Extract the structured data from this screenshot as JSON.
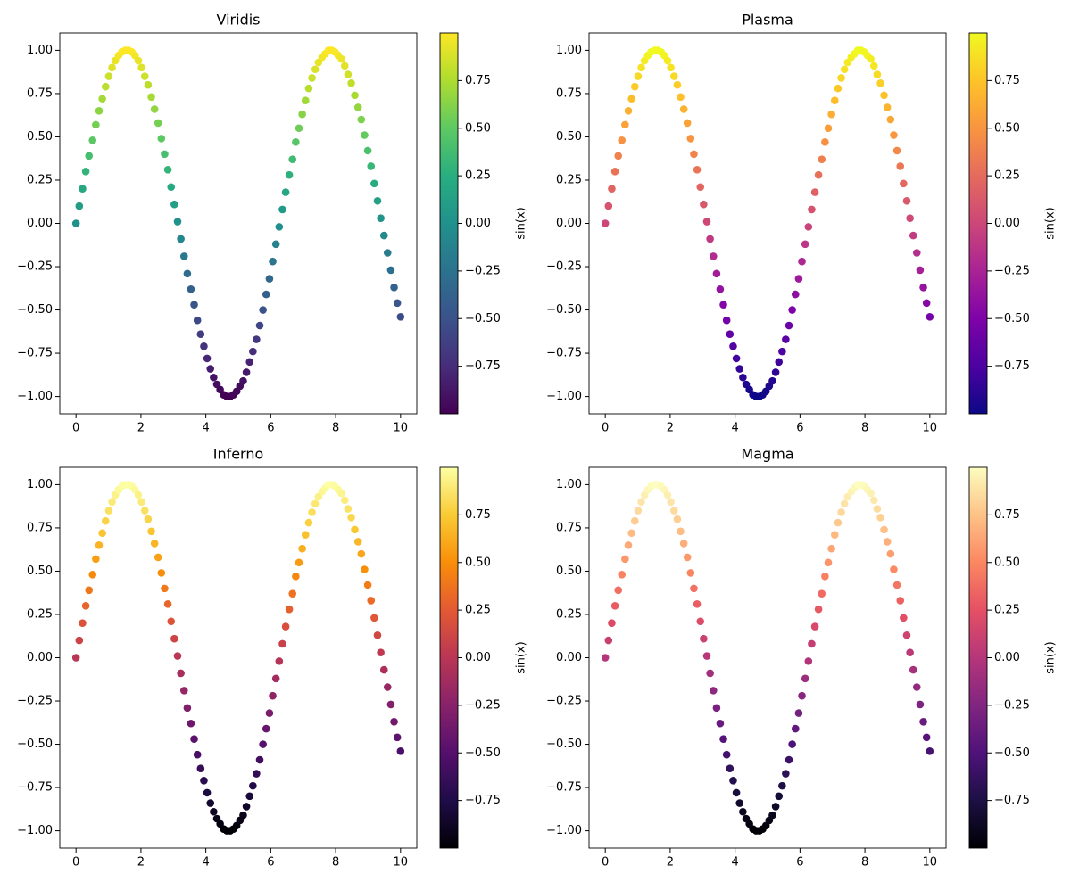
{
  "chart_data": [
    {
      "type": "scatter",
      "title": "Viridis",
      "colorbar_label": "sin(x)",
      "colors": [
        "#440154",
        "#472d7b",
        "#3b528b",
        "#2c728e",
        "#21918c",
        "#28ae80",
        "#5ec962",
        "#addc30",
        "#fde725"
      ],
      "clim": [
        -1,
        1
      ],
      "cticks": [
        {
          "value": -0.75,
          "label": "−0.75"
        },
        {
          "value": -0.5,
          "label": "−0.50"
        },
        {
          "value": -0.25,
          "label": "−0.25"
        },
        {
          "value": 0,
          "label": "0.00"
        },
        {
          "value": 0.25,
          "label": "0.25"
        },
        {
          "value": 0.5,
          "label": "0.50"
        },
        {
          "value": 0.75,
          "label": "0.75"
        }
      ],
      "xlim": [
        -0.5,
        10.5
      ],
      "xticks": [
        0,
        2,
        4,
        6,
        8,
        10
      ],
      "ylim": [
        -1.1,
        1.1
      ],
      "yticks": [
        {
          "value": -1,
          "label": "−1.00"
        },
        {
          "value": -0.75,
          "label": "−0.75"
        },
        {
          "value": -0.5,
          "label": "−0.50"
        },
        {
          "value": -0.25,
          "label": "−0.25"
        },
        {
          "value": 0,
          "label": "0.00"
        },
        {
          "value": 0.25,
          "label": "0.25"
        },
        {
          "value": 0.5,
          "label": "0.50"
        },
        {
          "value": 0.75,
          "label": "0.75"
        },
        {
          "value": 1,
          "label": "1.00"
        }
      ],
      "x": [
        0,
        0.1,
        0.2,
        0.3,
        0.4,
        0.51,
        0.61,
        0.71,
        0.81,
        0.91,
        1.01,
        1.11,
        1.21,
        1.31,
        1.41,
        1.52,
        1.62,
        1.72,
        1.82,
        1.92,
        2.02,
        2.12,
        2.22,
        2.32,
        2.42,
        2.53,
        2.63,
        2.73,
        2.83,
        2.93,
        3.03,
        3.13,
        3.23,
        3.33,
        3.43,
        3.54,
        3.64,
        3.74,
        3.84,
        3.94,
        4.04,
        4.14,
        4.24,
        4.34,
        4.44,
        4.55,
        4.65,
        4.75,
        4.85,
        4.95,
        5.05,
        5.15,
        5.25,
        5.35,
        5.45,
        5.56,
        5.66,
        5.76,
        5.86,
        5.96,
        6.06,
        6.16,
        6.26,
        6.36,
        6.46,
        6.57,
        6.67,
        6.77,
        6.87,
        6.97,
        7.07,
        7.17,
        7.27,
        7.37,
        7.47,
        7.58,
        7.68,
        7.78,
        7.88,
        7.98,
        8.08,
        8.18,
        8.28,
        8.38,
        8.48,
        8.59,
        8.69,
        8.79,
        8.89,
        8.99,
        9.09,
        9.19,
        9.29,
        9.39,
        9.49,
        9.6,
        9.7,
        9.8,
        9.9,
        10
      ],
      "values": [
        0,
        0.1,
        0.2,
        0.3,
        0.39,
        0.48,
        0.57,
        0.65,
        0.72,
        0.79,
        0.85,
        0.9,
        0.94,
        0.97,
        0.99,
        1.0,
        1.0,
        0.99,
        0.97,
        0.94,
        0.9,
        0.85,
        0.8,
        0.73,
        0.66,
        0.58,
        0.49,
        0.4,
        0.31,
        0.21,
        0.11,
        0.01,
        -0.09,
        -0.19,
        -0.29,
        -0.38,
        -0.47,
        -0.56,
        -0.64,
        -0.71,
        -0.78,
        -0.84,
        -0.89,
        -0.93,
        -0.96,
        -0.99,
        -1.0,
        -1.0,
        -0.99,
        -0.97,
        -0.94,
        -0.91,
        -0.86,
        -0.8,
        -0.74,
        -0.67,
        -0.59,
        -0.5,
        -0.41,
        -0.32,
        -0.22,
        -0.12,
        -0.02,
        0.08,
        0.18,
        0.28,
        0.37,
        0.47,
        0.55,
        0.63,
        0.71,
        0.78,
        0.84,
        0.89,
        0.93,
        0.96,
        0.98,
        1.0,
        1.0,
        0.99,
        0.97,
        0.95,
        0.91,
        0.86,
        0.81,
        0.74,
        0.67,
        0.6,
        0.51,
        0.42,
        0.33,
        0.23,
        0.13,
        0.03,
        -0.07,
        -0.17,
        -0.27,
        -0.37,
        -0.46,
        -0.54
      ]
    },
    {
      "type": "scatter",
      "title": "Plasma",
      "colorbar_label": "sin(x)",
      "colors": [
        "#0d0887",
        "#4c02a1",
        "#7e03a8",
        "#a92395",
        "#cc4778",
        "#e56b5d",
        "#f89540",
        "#fdc328",
        "#f0f921"
      ],
      "clim": [
        -1,
        1
      ],
      "cticks": [
        {
          "value": -0.75,
          "label": "−0.75"
        },
        {
          "value": -0.5,
          "label": "−0.50"
        },
        {
          "value": -0.25,
          "label": "−0.25"
        },
        {
          "value": 0,
          "label": "0.00"
        },
        {
          "value": 0.25,
          "label": "0.25"
        },
        {
          "value": 0.5,
          "label": "0.50"
        },
        {
          "value": 0.75,
          "label": "0.75"
        }
      ],
      "xlim": [
        -0.5,
        10.5
      ],
      "xticks": [
        0,
        2,
        4,
        6,
        8,
        10
      ],
      "ylim": [
        -1.1,
        1.1
      ],
      "yticks": [
        {
          "value": -1,
          "label": "−1.00"
        },
        {
          "value": -0.75,
          "label": "−0.75"
        },
        {
          "value": -0.5,
          "label": "−0.50"
        },
        {
          "value": -0.25,
          "label": "−0.25"
        },
        {
          "value": 0,
          "label": "0.00"
        },
        {
          "value": 0.25,
          "label": "0.25"
        },
        {
          "value": 0.5,
          "label": "0.50"
        },
        {
          "value": 0.75,
          "label": "0.75"
        },
        {
          "value": 1,
          "label": "1.00"
        }
      ],
      "x": [
        0,
        0.1,
        0.2,
        0.3,
        0.4,
        0.51,
        0.61,
        0.71,
        0.81,
        0.91,
        1.01,
        1.11,
        1.21,
        1.31,
        1.41,
        1.52,
        1.62,
        1.72,
        1.82,
        1.92,
        2.02,
        2.12,
        2.22,
        2.32,
        2.42,
        2.53,
        2.63,
        2.73,
        2.83,
        2.93,
        3.03,
        3.13,
        3.23,
        3.33,
        3.43,
        3.54,
        3.64,
        3.74,
        3.84,
        3.94,
        4.04,
        4.14,
        4.24,
        4.34,
        4.44,
        4.55,
        4.65,
        4.75,
        4.85,
        4.95,
        5.05,
        5.15,
        5.25,
        5.35,
        5.45,
        5.56,
        5.66,
        5.76,
        5.86,
        5.96,
        6.06,
        6.16,
        6.26,
        6.36,
        6.46,
        6.57,
        6.67,
        6.77,
        6.87,
        6.97,
        7.07,
        7.17,
        7.27,
        7.37,
        7.47,
        7.58,
        7.68,
        7.78,
        7.88,
        7.98,
        8.08,
        8.18,
        8.28,
        8.38,
        8.48,
        8.59,
        8.69,
        8.79,
        8.89,
        8.99,
        9.09,
        9.19,
        9.29,
        9.39,
        9.49,
        9.6,
        9.7,
        9.8,
        9.9,
        10
      ],
      "values": [
        0,
        0.1,
        0.2,
        0.3,
        0.39,
        0.48,
        0.57,
        0.65,
        0.72,
        0.79,
        0.85,
        0.9,
        0.94,
        0.97,
        0.99,
        1.0,
        1.0,
        0.99,
        0.97,
        0.94,
        0.9,
        0.85,
        0.8,
        0.73,
        0.66,
        0.58,
        0.49,
        0.4,
        0.31,
        0.21,
        0.11,
        0.01,
        -0.09,
        -0.19,
        -0.29,
        -0.38,
        -0.47,
        -0.56,
        -0.64,
        -0.71,
        -0.78,
        -0.84,
        -0.89,
        -0.93,
        -0.96,
        -0.99,
        -1.0,
        -1.0,
        -0.99,
        -0.97,
        -0.94,
        -0.91,
        -0.86,
        -0.8,
        -0.74,
        -0.67,
        -0.59,
        -0.5,
        -0.41,
        -0.32,
        -0.22,
        -0.12,
        -0.02,
        0.08,
        0.18,
        0.28,
        0.37,
        0.47,
        0.55,
        0.63,
        0.71,
        0.78,
        0.84,
        0.89,
        0.93,
        0.96,
        0.98,
        1.0,
        1.0,
        0.99,
        0.97,
        0.95,
        0.91,
        0.86,
        0.81,
        0.74,
        0.67,
        0.6,
        0.51,
        0.42,
        0.33,
        0.23,
        0.13,
        0.03,
        -0.07,
        -0.17,
        -0.27,
        -0.37,
        -0.46,
        -0.54
      ]
    },
    {
      "type": "scatter",
      "title": "Inferno",
      "colorbar_label": "sin(x)",
      "colors": [
        "#000004",
        "#1f0c48",
        "#550f6d",
        "#88226a",
        "#ba3655",
        "#e35933",
        "#f98e09",
        "#f9cb35",
        "#fcffa4"
      ],
      "clim": [
        -1,
        1
      ],
      "cticks": [
        {
          "value": -0.75,
          "label": "−0.75"
        },
        {
          "value": -0.5,
          "label": "−0.50"
        },
        {
          "value": -0.25,
          "label": "−0.25"
        },
        {
          "value": 0,
          "label": "0.00"
        },
        {
          "value": 0.25,
          "label": "0.25"
        },
        {
          "value": 0.5,
          "label": "0.50"
        },
        {
          "value": 0.75,
          "label": "0.75"
        }
      ],
      "xlim": [
        -0.5,
        10.5
      ],
      "xticks": [
        0,
        2,
        4,
        6,
        8,
        10
      ],
      "ylim": [
        -1.1,
        1.1
      ],
      "yticks": [
        {
          "value": -1,
          "label": "−1.00"
        },
        {
          "value": -0.75,
          "label": "−0.75"
        },
        {
          "value": -0.5,
          "label": "−0.50"
        },
        {
          "value": -0.25,
          "label": "−0.25"
        },
        {
          "value": 0,
          "label": "0.00"
        },
        {
          "value": 0.25,
          "label": "0.25"
        },
        {
          "value": 0.5,
          "label": "0.50"
        },
        {
          "value": 0.75,
          "label": "0.75"
        },
        {
          "value": 1,
          "label": "1.00"
        }
      ],
      "x": [
        0,
        0.1,
        0.2,
        0.3,
        0.4,
        0.51,
        0.61,
        0.71,
        0.81,
        0.91,
        1.01,
        1.11,
        1.21,
        1.31,
        1.41,
        1.52,
        1.62,
        1.72,
        1.82,
        1.92,
        2.02,
        2.12,
        2.22,
        2.32,
        2.42,
        2.53,
        2.63,
        2.73,
        2.83,
        2.93,
        3.03,
        3.13,
        3.23,
        3.33,
        3.43,
        3.54,
        3.64,
        3.74,
        3.84,
        3.94,
        4.04,
        4.14,
        4.24,
        4.34,
        4.44,
        4.55,
        4.65,
        4.75,
        4.85,
        4.95,
        5.05,
        5.15,
        5.25,
        5.35,
        5.45,
        5.56,
        5.66,
        5.76,
        5.86,
        5.96,
        6.06,
        6.16,
        6.26,
        6.36,
        6.46,
        6.57,
        6.67,
        6.77,
        6.87,
        6.97,
        7.07,
        7.17,
        7.27,
        7.37,
        7.47,
        7.58,
        7.68,
        7.78,
        7.88,
        7.98,
        8.08,
        8.18,
        8.28,
        8.38,
        8.48,
        8.59,
        8.69,
        8.79,
        8.89,
        8.99,
        9.09,
        9.19,
        9.29,
        9.39,
        9.49,
        9.6,
        9.7,
        9.8,
        9.9,
        10
      ],
      "values": [
        0,
        0.1,
        0.2,
        0.3,
        0.39,
        0.48,
        0.57,
        0.65,
        0.72,
        0.79,
        0.85,
        0.9,
        0.94,
        0.97,
        0.99,
        1.0,
        1.0,
        0.99,
        0.97,
        0.94,
        0.9,
        0.85,
        0.8,
        0.73,
        0.66,
        0.58,
        0.49,
        0.4,
        0.31,
        0.21,
        0.11,
        0.01,
        -0.09,
        -0.19,
        -0.29,
        -0.38,
        -0.47,
        -0.56,
        -0.64,
        -0.71,
        -0.78,
        -0.84,
        -0.89,
        -0.93,
        -0.96,
        -0.99,
        -1.0,
        -1.0,
        -0.99,
        -0.97,
        -0.94,
        -0.91,
        -0.86,
        -0.8,
        -0.74,
        -0.67,
        -0.59,
        -0.5,
        -0.41,
        -0.32,
        -0.22,
        -0.12,
        -0.02,
        0.08,
        0.18,
        0.28,
        0.37,
        0.47,
        0.55,
        0.63,
        0.71,
        0.78,
        0.84,
        0.89,
        0.93,
        0.96,
        0.98,
        1.0,
        1.0,
        0.99,
        0.97,
        0.95,
        0.91,
        0.86,
        0.81,
        0.74,
        0.67,
        0.6,
        0.51,
        0.42,
        0.33,
        0.23,
        0.13,
        0.03,
        -0.07,
        -0.17,
        -0.27,
        -0.37,
        -0.46,
        -0.54
      ]
    },
    {
      "type": "scatter",
      "title": "Magma",
      "colorbar_label": "sin(x)",
      "colors": [
        "#000004",
        "#1c1044",
        "#4f127b",
        "#812581",
        "#b5367a",
        "#e55064",
        "#fb8761",
        "#fec287",
        "#fcfdbf"
      ],
      "clim": [
        -1,
        1
      ],
      "cticks": [
        {
          "value": -0.75,
          "label": "−0.75"
        },
        {
          "value": -0.5,
          "label": "−0.50"
        },
        {
          "value": -0.25,
          "label": "−0.25"
        },
        {
          "value": 0,
          "label": "0.00"
        },
        {
          "value": 0.25,
          "label": "0.25"
        },
        {
          "value": 0.5,
          "label": "0.50"
        },
        {
          "value": 0.75,
          "label": "0.75"
        }
      ],
      "xlim": [
        -0.5,
        10.5
      ],
      "xticks": [
        0,
        2,
        4,
        6,
        8,
        10
      ],
      "ylim": [
        -1.1,
        1.1
      ],
      "yticks": [
        {
          "value": -1,
          "label": "−1.00"
        },
        {
          "value": -0.75,
          "label": "−0.75"
        },
        {
          "value": -0.5,
          "label": "−0.50"
        },
        {
          "value": -0.25,
          "label": "−0.25"
        },
        {
          "value": 0,
          "label": "0.00"
        },
        {
          "value": 0.25,
          "label": "0.25"
        },
        {
          "value": 0.5,
          "label": "0.50"
        },
        {
          "value": 0.75,
          "label": "0.75"
        },
        {
          "value": 1,
          "label": "1.00"
        }
      ],
      "x": [
        0,
        0.1,
        0.2,
        0.3,
        0.4,
        0.51,
        0.61,
        0.71,
        0.81,
        0.91,
        1.01,
        1.11,
        1.21,
        1.31,
        1.41,
        1.52,
        1.62,
        1.72,
        1.82,
        1.92,
        2.02,
        2.12,
        2.22,
        2.32,
        2.42,
        2.53,
        2.63,
        2.73,
        2.83,
        2.93,
        3.03,
        3.13,
        3.23,
        3.33,
        3.43,
        3.54,
        3.64,
        3.74,
        3.84,
        3.94,
        4.04,
        4.14,
        4.24,
        4.34,
        4.44,
        4.55,
        4.65,
        4.75,
        4.85,
        4.95,
        5.05,
        5.15,
        5.25,
        5.35,
        5.45,
        5.56,
        5.66,
        5.76,
        5.86,
        5.96,
        6.06,
        6.16,
        6.26,
        6.36,
        6.46,
        6.57,
        6.67,
        6.77,
        6.87,
        6.97,
        7.07,
        7.17,
        7.27,
        7.37,
        7.47,
        7.58,
        7.68,
        7.78,
        7.88,
        7.98,
        8.08,
        8.18,
        8.28,
        8.38,
        8.48,
        8.59,
        8.69,
        8.79,
        8.89,
        8.99,
        9.09,
        9.19,
        9.29,
        9.39,
        9.49,
        9.6,
        9.7,
        9.8,
        9.9,
        10
      ],
      "values": [
        0,
        0.1,
        0.2,
        0.3,
        0.39,
        0.48,
        0.57,
        0.65,
        0.72,
        0.79,
        0.85,
        0.9,
        0.94,
        0.97,
        0.99,
        1.0,
        1.0,
        0.99,
        0.97,
        0.94,
        0.9,
        0.85,
        0.8,
        0.73,
        0.66,
        0.58,
        0.49,
        0.4,
        0.31,
        0.21,
        0.11,
        0.01,
        -0.09,
        -0.19,
        -0.29,
        -0.38,
        -0.47,
        -0.56,
        -0.64,
        -0.71,
        -0.78,
        -0.84,
        -0.89,
        -0.93,
        -0.96,
        -0.99,
        -1.0,
        -1.0,
        -0.99,
        -0.97,
        -0.94,
        -0.91,
        -0.86,
        -0.8,
        -0.74,
        -0.67,
        -0.59,
        -0.5,
        -0.41,
        -0.32,
        -0.22,
        -0.12,
        -0.02,
        0.08,
        0.18,
        0.28,
        0.37,
        0.47,
        0.55,
        0.63,
        0.71,
        0.78,
        0.84,
        0.89,
        0.93,
        0.96,
        0.98,
        1.0,
        1.0,
        0.99,
        0.97,
        0.95,
        0.91,
        0.86,
        0.81,
        0.74,
        0.67,
        0.6,
        0.51,
        0.42,
        0.33,
        0.23,
        0.13,
        0.03,
        -0.07,
        -0.17,
        -0.27,
        -0.37,
        -0.46,
        -0.54
      ]
    }
  ]
}
